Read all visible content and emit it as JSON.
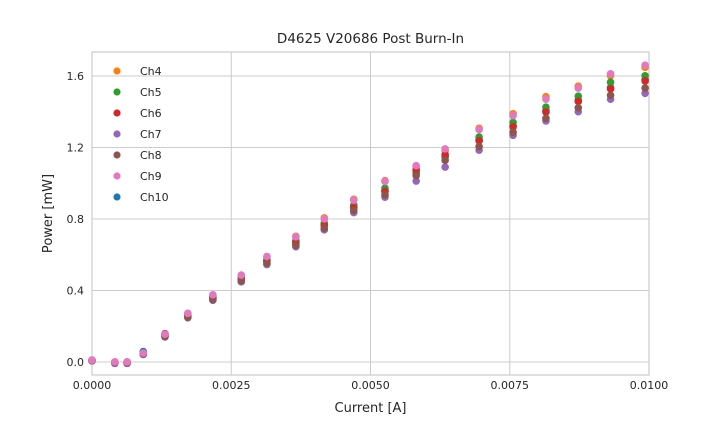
{
  "title": "D4625 V20686 Post Burn-In",
  "colors": {
    "background": "#ffffff",
    "grid": "#cccccc",
    "spine": "#cccccc",
    "text": "#262626"
  },
  "chart_data": {
    "type": "scatter",
    "title": "D4625 V20686 Post Burn-In",
    "xlabel": "Current [A]",
    "ylabel": "Power [mW]",
    "xlim": [
      0.0,
      0.01
    ],
    "ylim": [
      -0.073,
      1.734
    ],
    "grid": true,
    "legend_position": "upper left",
    "xticks": [
      0.0,
      0.0025,
      0.005,
      0.0075,
      0.01
    ],
    "xtick_labels": [
      "0.0000",
      "0.0025",
      "0.0050",
      "0.0075",
      "0.0100"
    ],
    "yticks": [
      0.0,
      0.4,
      0.8,
      1.2,
      1.6
    ],
    "ytick_labels": [
      "0.0",
      "0.4",
      "0.8",
      "1.2",
      "1.6"
    ],
    "marker": "circle",
    "marker_radius_px": 3.8,
    "x": [
      0.0,
      0.00041,
      0.00063,
      0.00092,
      0.00131,
      0.00172,
      0.00217,
      0.00268,
      0.00314,
      0.00366,
      0.00417,
      0.0047,
      0.00526,
      0.00582,
      0.00634,
      0.00695,
      0.00756,
      0.00815,
      0.00873,
      0.00931,
      0.00993
    ],
    "series": [
      {
        "name": "Ch4",
        "color": "#ff7f0e",
        "values": [
          0.01,
          0.0,
          0.0,
          0.048,
          0.153,
          0.27,
          0.373,
          0.483,
          0.587,
          0.703,
          0.806,
          0.91,
          1.014,
          1.092,
          1.183,
          1.307,
          1.388,
          1.484,
          1.543,
          1.601,
          1.648
        ]
      },
      {
        "name": "Ch5",
        "color": "#2ca02c",
        "values": [
          0.009,
          -0.002,
          -0.002,
          0.044,
          0.149,
          0.262,
          0.363,
          0.47,
          0.572,
          0.678,
          0.777,
          0.878,
          0.972,
          1.06,
          1.152,
          1.258,
          1.34,
          1.425,
          1.487,
          1.565,
          1.601
        ]
      },
      {
        "name": "Ch6",
        "color": "#d62728",
        "values": [
          0.009,
          -0.001,
          -0.001,
          0.047,
          0.158,
          0.257,
          0.357,
          0.462,
          0.562,
          0.665,
          0.763,
          0.862,
          0.953,
          1.075,
          1.16,
          1.237,
          1.315,
          1.398,
          1.458,
          1.528,
          1.572
        ]
      },
      {
        "name": "Ch7",
        "color": "#9467bd",
        "values": [
          0.006,
          -0.008,
          -0.008,
          0.042,
          0.14,
          0.247,
          0.345,
          0.448,
          0.545,
          0.645,
          0.739,
          0.836,
          0.922,
          1.012,
          1.09,
          1.185,
          1.268,
          1.348,
          1.4,
          1.47,
          1.503
        ]
      },
      {
        "name": "Ch8",
        "color": "#8c564b",
        "values": [
          0.007,
          -0.004,
          -0.005,
          0.045,
          0.143,
          0.251,
          0.35,
          0.454,
          0.552,
          0.652,
          0.748,
          0.847,
          0.935,
          1.043,
          1.128,
          1.205,
          1.285,
          1.363,
          1.422,
          1.492,
          1.532
        ]
      },
      {
        "name": "Ch9",
        "color": "#e377c2",
        "values": [
          0.01,
          0.0,
          0.0,
          0.05,
          0.155,
          0.272,
          0.376,
          0.486,
          0.59,
          0.7,
          0.8,
          0.905,
          1.01,
          1.098,
          1.192,
          1.3,
          1.378,
          1.47,
          1.532,
          1.612,
          1.66
        ]
      },
      {
        "name": "Ch10",
        "color": "#1f77b4",
        "values": [
          0.01,
          -0.001,
          -0.001,
          0.058,
          0.15,
          0.259,
          0.36,
          0.466,
          0.568,
          0.672,
          0.77,
          0.87,
          0.96,
          1.055,
          1.145,
          1.24,
          1.322,
          1.405,
          1.465,
          1.535,
          1.58
        ]
      }
    ],
    "draw_order": [
      "Ch10",
      "Ch4",
      "Ch5",
      "Ch6",
      "Ch7",
      "Ch8",
      "Ch9"
    ],
    "legend_order": [
      "Ch4",
      "Ch5",
      "Ch6",
      "Ch7",
      "Ch8",
      "Ch9",
      "Ch10"
    ]
  }
}
